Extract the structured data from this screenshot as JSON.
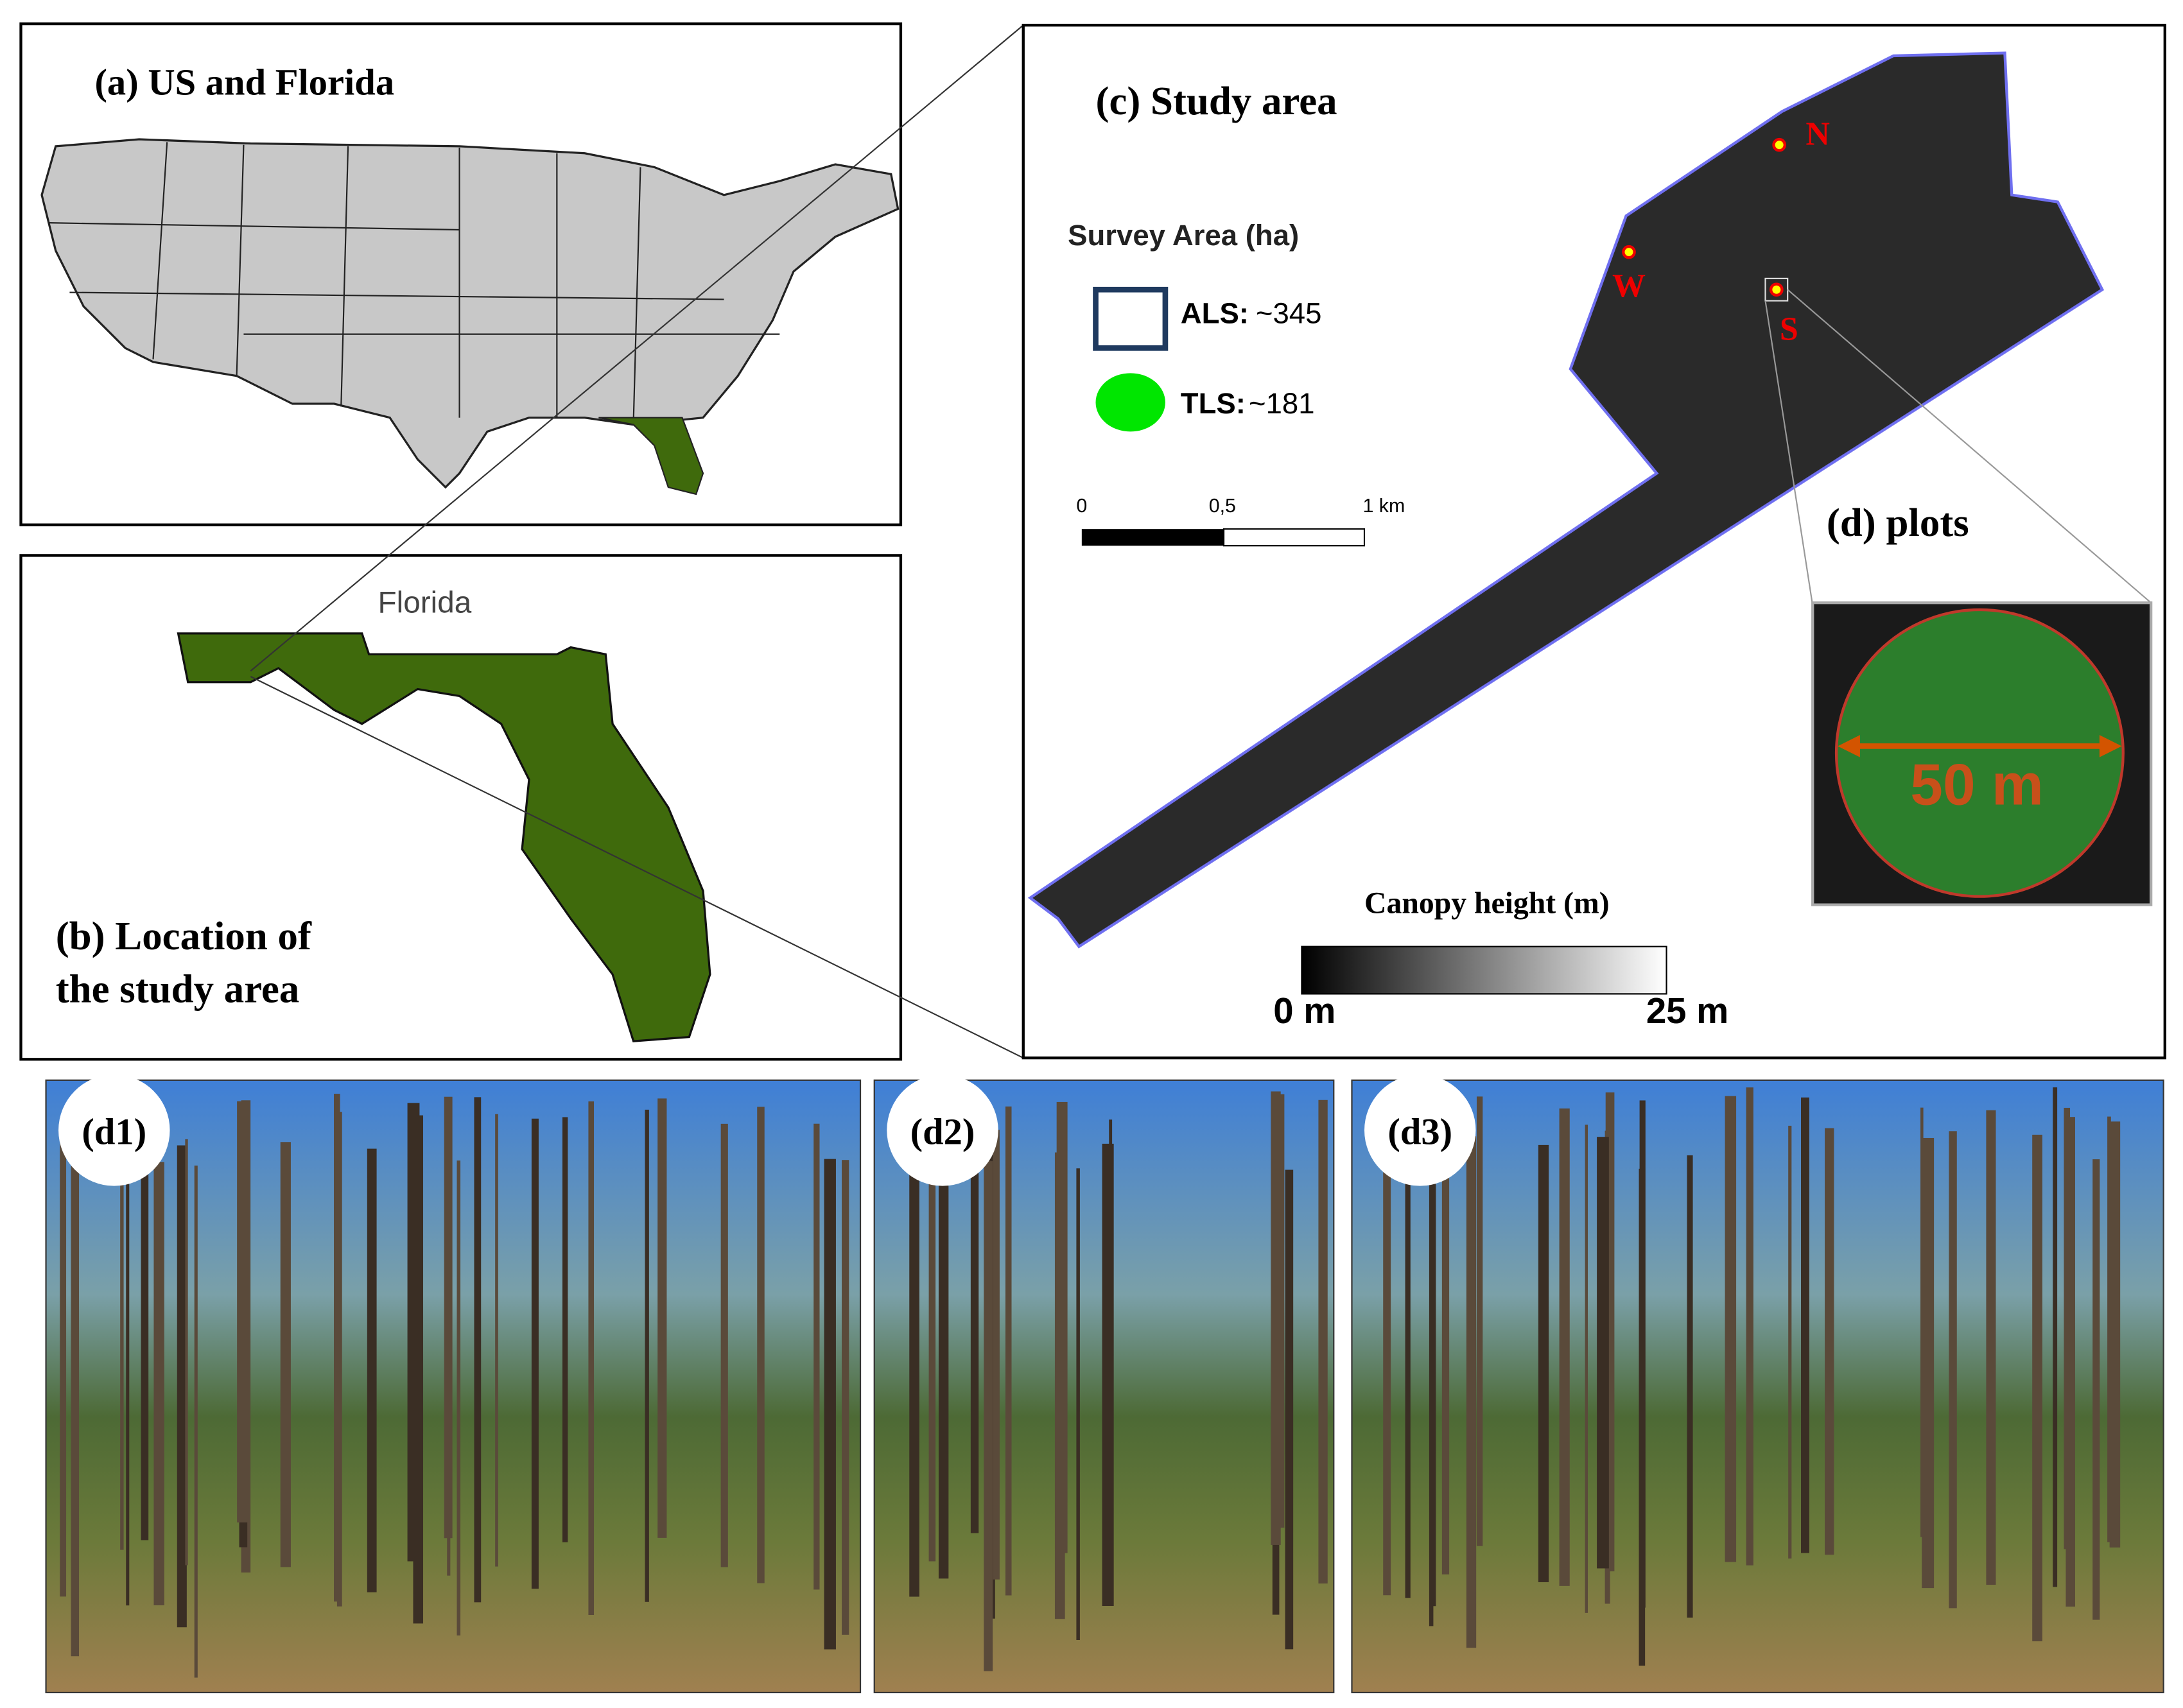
{
  "panel_a": {
    "title": "(a) US and Florida"
  },
  "panel_b": {
    "map_label": "Florida",
    "title_lines": [
      "(b) Location of",
      "the study area"
    ]
  },
  "panel_c": {
    "title": "(c) Study area",
    "legend": {
      "title": "Survey Area (ha)",
      "items": [
        {
          "name": "ALS:",
          "value": "~345"
        },
        {
          "name": "TLS:",
          "value": "~181"
        }
      ]
    },
    "scale_bar": [
      "0",
      "0,5",
      "1 km"
    ],
    "sites": [
      "N",
      "W",
      "S"
    ],
    "colorbar": {
      "title": "Canopy height (m)",
      "min_label": "0 m",
      "max_label": "25 m"
    }
  },
  "panel_d": {
    "title": "(d) plots",
    "diameter": "50 m"
  },
  "photos": [
    "(d1)",
    "(d2)",
    "(d3)"
  ]
}
